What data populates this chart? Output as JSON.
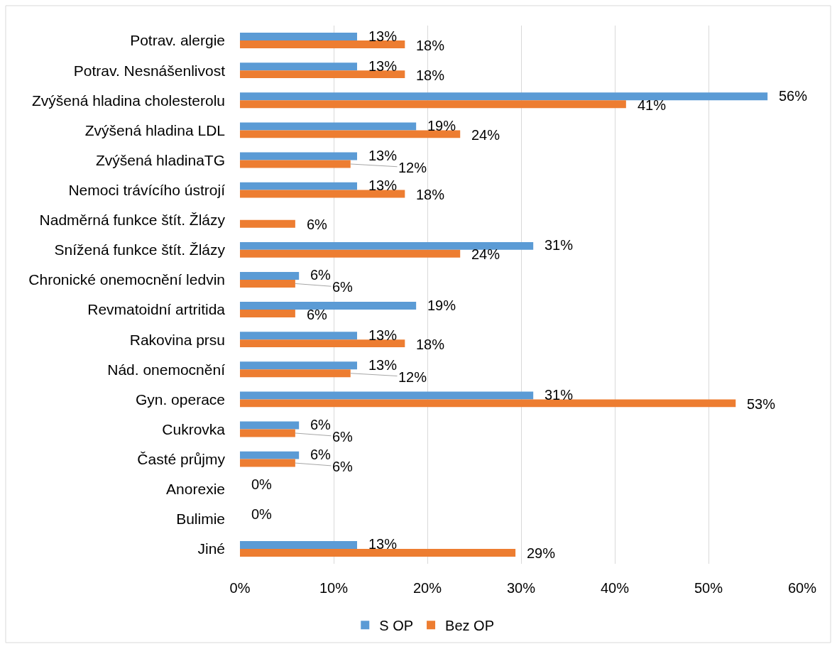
{
  "chart_data": {
    "type": "bar",
    "orientation": "horizontal",
    "categories": [
      "Potrav. alergie",
      "Potrav. Nesnášenlivost",
      "Zvýšená hladina cholesterolu",
      "Zvýšená hladina LDL",
      "Zvýšená hladinaTG",
      "Nemoci trávícího ústrojí",
      "Nadměrná funkce štít. Žlázy",
      "Snížená funkce štít. Žlázy",
      "Chronické onemocnění ledvin",
      "Revmatoidní artritida",
      "Rakovina prsu",
      "Nád. onemocnění",
      "Gyn. operace",
      "Cukrovka",
      "Časté průjmy",
      "Anorexie",
      "Bulimie",
      "Jiné"
    ],
    "series": [
      {
        "name": "S OP",
        "color": "#5b9bd5",
        "values": [
          12.5,
          12.5,
          56.3,
          18.8,
          12.5,
          12.5,
          null,
          31.3,
          6.3,
          18.8,
          12.5,
          12.5,
          31.3,
          6.3,
          6.3,
          0,
          0,
          12.5
        ],
        "value_labels": [
          "13%",
          "13%",
          "56%",
          "19%",
          "13%",
          "13%",
          null,
          "31%",
          "6%",
          "19%",
          "13%",
          "13%",
          "31%",
          "6%",
          "6%",
          "0%",
          "0%",
          "13%"
        ]
      },
      {
        "name": "Bez OP",
        "color": "#ed7d31",
        "values": [
          17.6,
          17.6,
          41.2,
          23.5,
          11.8,
          17.6,
          5.9,
          23.5,
          5.9,
          5.9,
          17.6,
          11.8,
          52.9,
          5.9,
          5.9,
          null,
          null,
          29.4
        ],
        "value_labels": [
          "18%",
          "18%",
          "41%",
          "24%",
          "12%",
          "18%",
          "6%",
          "24%",
          "6%",
          "6%",
          "18%",
          "12%",
          "53%",
          "6%",
          "6%",
          null,
          null,
          "29%"
        ]
      }
    ],
    "xlim": [
      0,
      60
    ],
    "xticks": [
      {
        "value": 0,
        "label": "0%"
      },
      {
        "value": 10,
        "label": "10%"
      },
      {
        "value": 20,
        "label": "20%"
      },
      {
        "value": 30,
        "label": "30%"
      },
      {
        "value": 40,
        "label": "40%"
      },
      {
        "value": 50,
        "label": "50%"
      },
      {
        "value": 60,
        "label": "60%"
      }
    ],
    "grid": "x",
    "legend": "bottom"
  }
}
